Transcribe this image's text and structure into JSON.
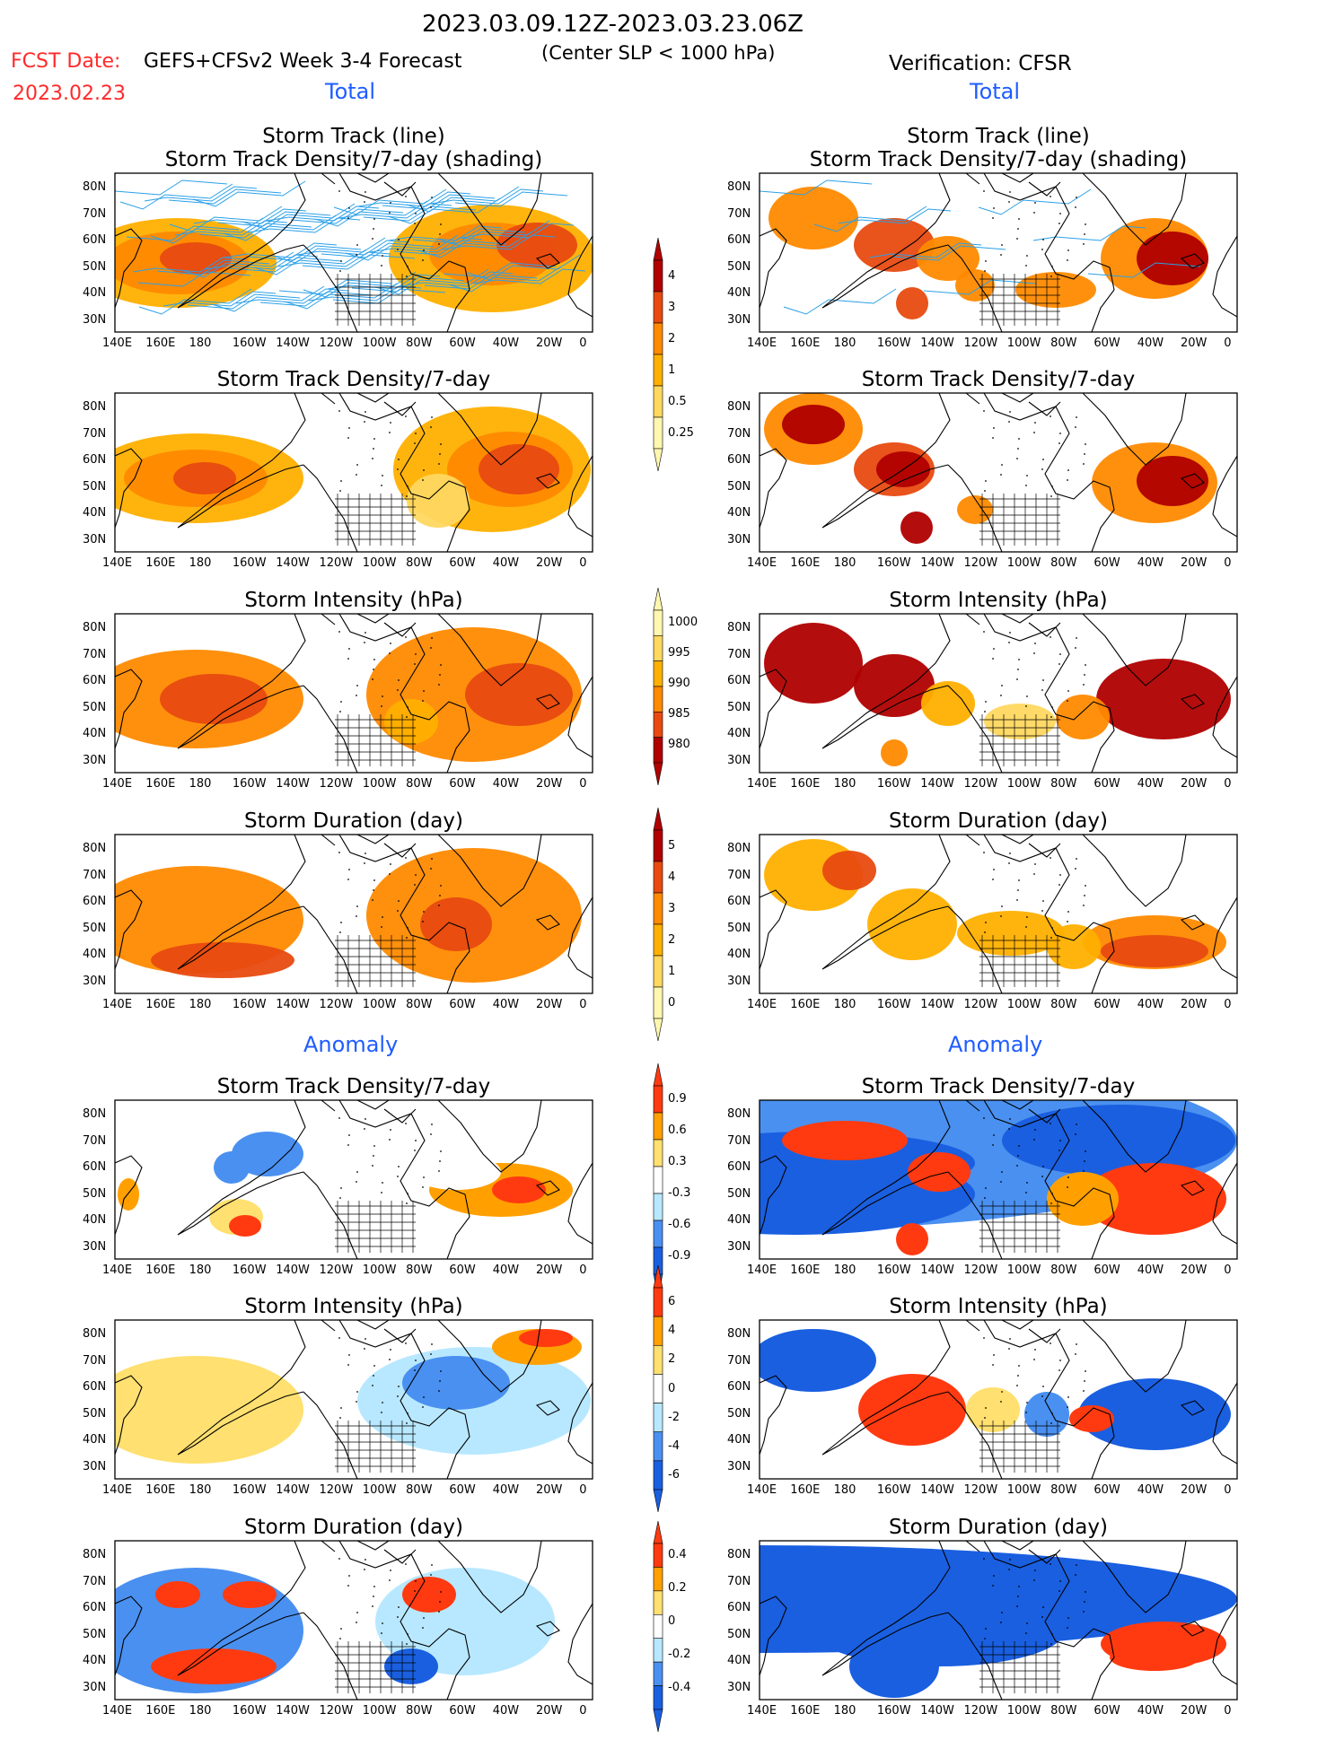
{
  "header": {
    "period": "2023.03.09.12Z-2023.03.23.06Z",
    "fcst_prefix": "FCST Date:",
    "fcst_date": "2023.02.23",
    "model": "GEFS+CFSv2 Week 3-4 Forecast",
    "criterion": "(Center SLP < 1000 hPa)",
    "verification": "Verification: CFSR"
  },
  "section_labels": {
    "total": "Total",
    "anomaly": "Anomaly"
  },
  "panel_titles": {
    "track_line": "Storm Track (line)",
    "track_shade": "Storm Track Density/7-day (shading)",
    "density": "Storm Track Density/7-day",
    "intensity": "Storm Intensity (hPa)",
    "duration": "Storm Duration (day)"
  },
  "axes": {
    "lat_labels": [
      "80N",
      "70N",
      "60N",
      "50N",
      "40N",
      "30N"
    ],
    "lon_labels": [
      "140E",
      "160E",
      "180",
      "160W",
      "140W",
      "120W",
      "100W",
      "80W",
      "60W",
      "40W",
      "20W",
      "0"
    ]
  },
  "colorbars": {
    "density_total": [
      "4",
      "3",
      "2",
      "1",
      "0.5",
      "0.25"
    ],
    "intensity_total": [
      "1000",
      "995",
      "990",
      "985",
      "980"
    ],
    "duration_total": [
      "5",
      "4",
      "3",
      "2",
      "1",
      "0"
    ],
    "density_anom": [
      "0.9",
      "0.6",
      "0.3",
      "-0.3",
      "-0.6",
      "-0.9"
    ],
    "intensity_anom": [
      "6",
      "4",
      "2",
      "0",
      "-2",
      "-4",
      "-6"
    ],
    "duration_anom": [
      "0.4",
      "0.2",
      "0",
      "-0.2",
      "-0.4"
    ]
  },
  "colors": {
    "total_scale": [
      "#fff7b0",
      "#ffd860",
      "#ffb000",
      "#ff8a00",
      "#e84a10",
      "#b00000"
    ],
    "anom_scale": [
      "#1a5fe0",
      "#4a90f0",
      "#b8e8ff",
      "#ffffff",
      "#ffe070",
      "#ffa000",
      "#ff3a10"
    ],
    "track_line": "#2aa0e8",
    "red_text": "#ff2a2a",
    "blue_text": "#1f5cff"
  }
}
